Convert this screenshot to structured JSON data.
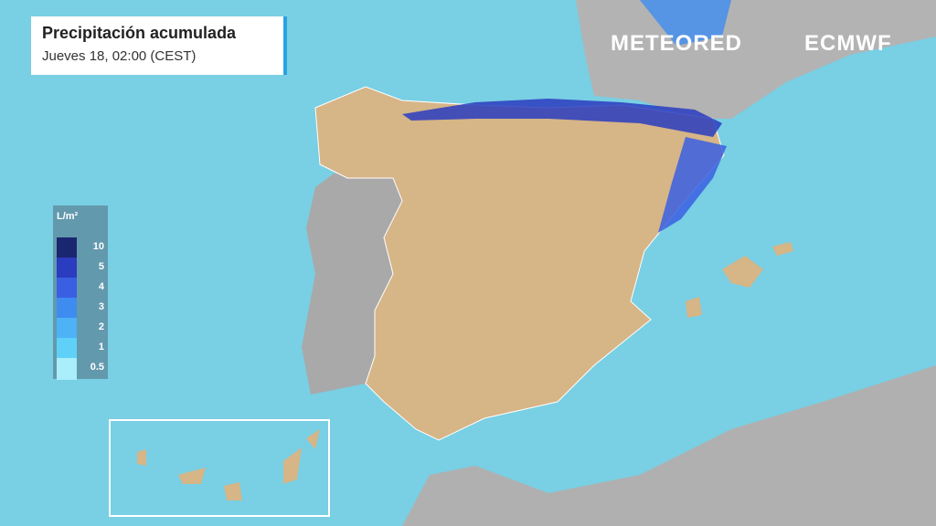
{
  "header": {
    "title": "Precipitación acumulada",
    "subtitle": "Jueves 18, 02:00 (CEST)"
  },
  "logos": {
    "meteored": "METEORED",
    "ecmwf": "ECMWF"
  },
  "legend": {
    "unit": "L/m²",
    "items": [
      {
        "label": "10",
        "color": "#1b2670"
      },
      {
        "label": "5",
        "color": "#2a3cc0"
      },
      {
        "label": "4",
        "color": "#3a5fe2"
      },
      {
        "label": "3",
        "color": "#3f8cf0"
      },
      {
        "label": "2",
        "color": "#4db2f6"
      },
      {
        "label": "1",
        "color": "#5fd0f8"
      },
      {
        "label": "0.5",
        "color": "#aaedfb"
      }
    ]
  }
}
